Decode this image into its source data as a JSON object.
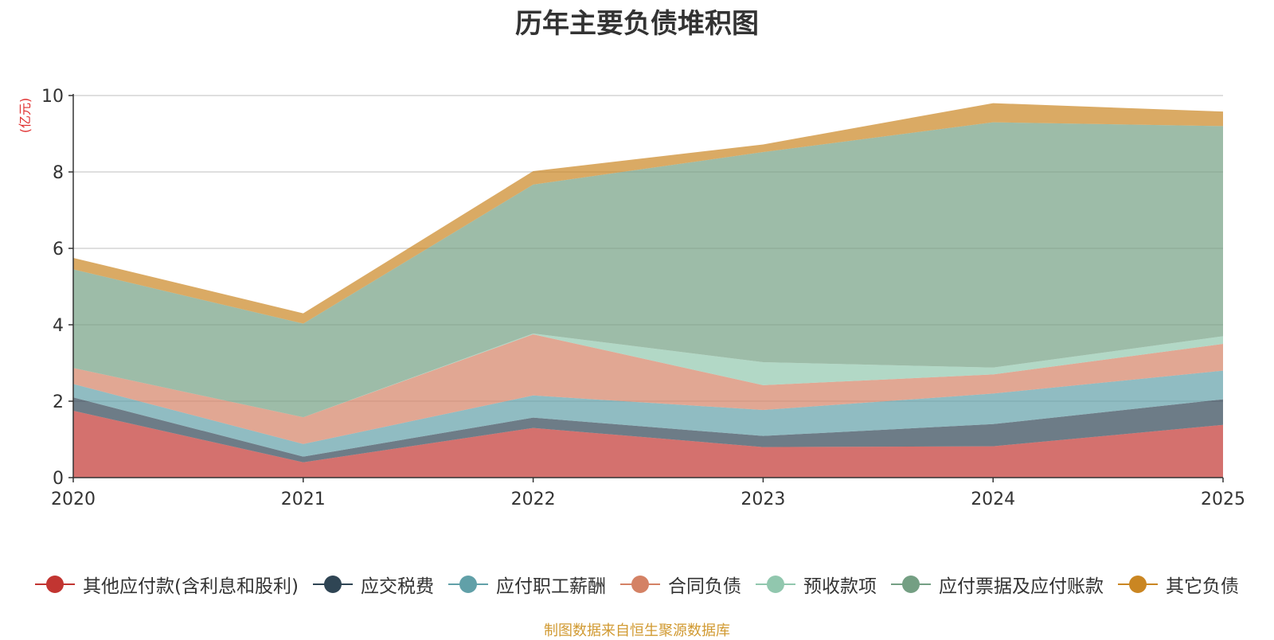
{
  "chart_data": {
    "type": "area",
    "stacked": true,
    "title": "历年主要负债堆积图",
    "ylabel": "(亿元)",
    "xlabel": "",
    "categories": [
      "2020",
      "2021",
      "2022",
      "2023",
      "2024",
      "2025"
    ],
    "ylim": [
      0,
      10
    ],
    "yticks": [
      0,
      2,
      4,
      6,
      8,
      10
    ],
    "grid": true,
    "legend_position": "bottom",
    "series": [
      {
        "name": "其他应付款(含利息和股利)",
        "color": "#c23531",
        "values": [
          1.75,
          0.4,
          1.3,
          0.8,
          0.82,
          1.38
        ]
      },
      {
        "name": "应交税费",
        "color": "#2f4554",
        "values": [
          0.35,
          0.15,
          0.27,
          0.29,
          0.58,
          0.67
        ]
      },
      {
        "name": "应付职工薪酬",
        "color": "#61a0a8",
        "values": [
          0.35,
          0.33,
          0.58,
          0.68,
          0.8,
          0.75
        ]
      },
      {
        "name": "合同负债",
        "color": "#d48265",
        "values": [
          0.42,
          0.7,
          1.6,
          0.65,
          0.5,
          0.7
        ]
      },
      {
        "name": "预收款项",
        "color": "#91c7ae",
        "values": [
          0.0,
          0.0,
          0.02,
          0.6,
          0.18,
          0.2
        ]
      },
      {
        "name": "应付票据及应付账款",
        "color": "#749f83",
        "values": [
          2.58,
          2.45,
          3.9,
          5.5,
          6.42,
          5.5
        ]
      },
      {
        "name": "其它负债",
        "color": "#ca8622",
        "values": [
          0.3,
          0.27,
          0.35,
          0.2,
          0.5,
          0.38
        ]
      }
    ]
  },
  "footer": {
    "source": "制图数据来自恒生聚源数据库"
  }
}
